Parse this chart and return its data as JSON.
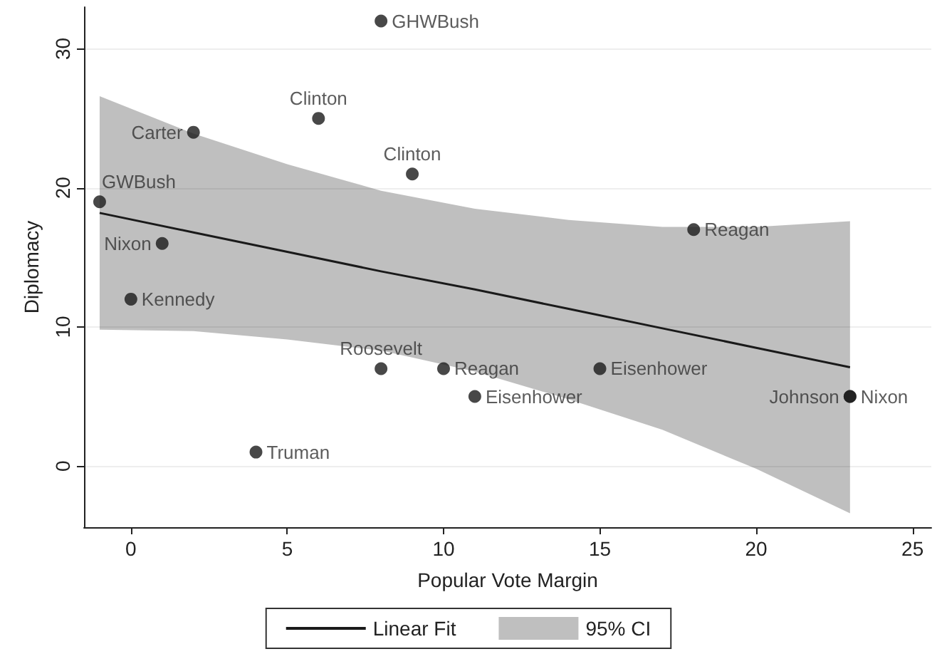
{
  "chart_data": {
    "type": "scatter",
    "xlabel": "Popular Vote Margin",
    "ylabel": "Diplomacy",
    "xlim": [
      -1.5,
      25.6
    ],
    "xticks": [
      0,
      5,
      10,
      15,
      20,
      25
    ],
    "ylim": [
      -4.4,
      33
    ],
    "yticks": [
      0,
      10,
      20,
      30
    ],
    "grid": "y",
    "legend": "bottom",
    "annotations": [
      "95% CI"
    ],
    "series": [
      {
        "type": "line",
        "name": "Linear Fit",
        "color": "#1a1a1a",
        "marker": "none",
        "x": [
          -1,
          2,
          5,
          8,
          11,
          14,
          17,
          20,
          23
        ],
        "values": [
          18.2,
          16.8,
          15.4,
          14.0,
          12.7,
          11.3,
          9.9,
          8.5,
          7.1
        ],
        "lower": [
          9.8,
          9.7,
          9.1,
          8.3,
          6.8,
          4.8,
          2.6,
          -0.2,
          -3.4
        ],
        "upper": [
          26.6,
          23.9,
          21.7,
          19.8,
          18.5,
          17.7,
          17.2,
          17.2,
          17.6
        ]
      },
      {
        "type": "scatter",
        "color": "#1a1a1a",
        "marker": "circle",
        "x": [
          8,
          2,
          6,
          9,
          -1,
          1,
          0,
          8,
          10,
          11,
          15,
          18,
          4,
          23,
          23
        ],
        "values": [
          32,
          24,
          25,
          21,
          19,
          16,
          12,
          7,
          7,
          5,
          7,
          17,
          1,
          5,
          5
        ],
        "value_labels": [
          "GHWBush",
          "Carter",
          "Clinton",
          "Clinton",
          "GWBush",
          "Nixon",
          "Kennedy",
          "Roosevelt",
          "Reagan",
          "Eisenhower",
          "Eisenhower",
          "Reagan",
          "Truman",
          "Johnson",
          "Nixon"
        ]
      }
    ]
  }
}
